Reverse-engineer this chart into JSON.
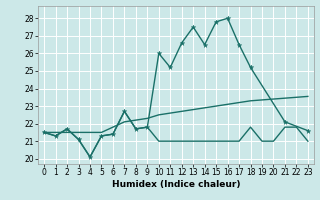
{
  "xlabel": "Humidex (Indice chaleur)",
  "background_color": "#cce8e8",
  "grid_color": "#b8d8d8",
  "line_color": "#1a7068",
  "xlim": [
    -0.5,
    23.5
  ],
  "ylim": [
    19.7,
    28.7
  ],
  "yticks": [
    20,
    21,
    22,
    23,
    24,
    25,
    26,
    27,
    28
  ],
  "xticks": [
    0,
    1,
    2,
    3,
    4,
    5,
    6,
    7,
    8,
    9,
    10,
    11,
    12,
    13,
    14,
    15,
    16,
    17,
    18,
    19,
    20,
    21,
    22,
    23
  ],
  "line1_x": [
    0,
    1,
    2,
    3,
    4,
    5,
    6,
    7,
    8,
    9,
    10,
    11,
    12,
    13,
    14,
    15,
    16,
    17,
    18,
    21,
    23
  ],
  "line1_y": [
    21.5,
    21.3,
    21.7,
    21.1,
    20.1,
    21.3,
    21.4,
    22.7,
    21.7,
    21.8,
    26.0,
    25.2,
    26.6,
    27.5,
    26.5,
    27.8,
    28.0,
    26.5,
    25.2,
    22.1,
    21.6
  ],
  "line2_x": [
    0,
    5,
    6,
    7,
    8,
    9,
    10,
    11,
    12,
    13,
    14,
    15,
    16,
    17,
    18,
    19,
    20,
    21,
    22,
    23
  ],
  "line2_y": [
    21.5,
    21.5,
    21.8,
    22.1,
    22.2,
    22.3,
    22.5,
    22.6,
    22.7,
    22.8,
    22.9,
    23.0,
    23.1,
    23.2,
    23.3,
    23.35,
    23.4,
    23.45,
    23.5,
    23.55
  ],
  "line3_x": [
    0,
    1,
    2,
    3,
    4,
    5,
    6,
    7,
    8,
    9,
    10,
    11,
    12,
    13,
    14,
    15,
    16,
    17,
    18,
    19,
    20,
    21,
    22,
    23
  ],
  "line3_y": [
    21.5,
    21.3,
    21.7,
    21.1,
    20.1,
    21.3,
    21.4,
    22.7,
    21.7,
    21.8,
    21.0,
    21.0,
    21.0,
    21.0,
    21.0,
    21.0,
    21.0,
    21.0,
    21.8,
    21.0,
    21.0,
    21.8,
    21.8,
    21.0
  ]
}
